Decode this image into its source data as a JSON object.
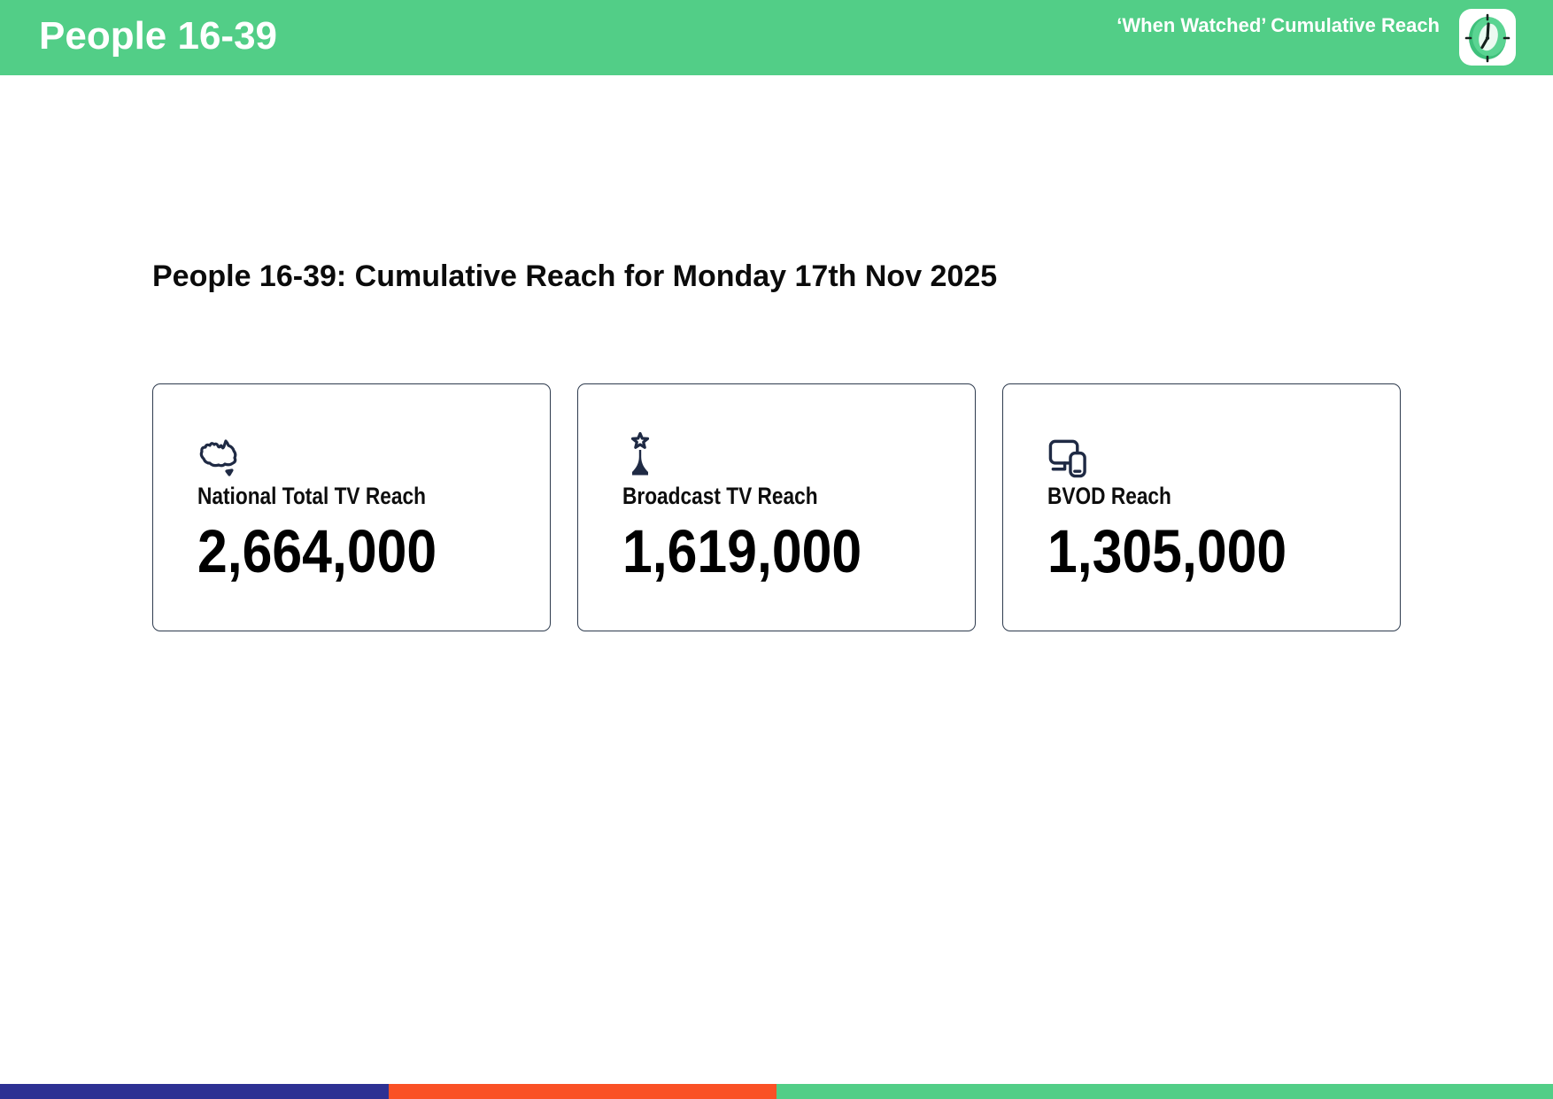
{
  "header": {
    "title": "People 16-39",
    "subtitle": "‘When Watched’ Cumulative Reach",
    "accent_green": "#52ce87",
    "logo_icon": "clock-app-icon"
  },
  "main": {
    "heading": "People 16-39: Cumulative Reach for Monday 17th Nov 2025",
    "icon_color": "#1f2a44",
    "card_border_color": "#2e3b4e",
    "cards": [
      {
        "icon": "australia-map-icon",
        "label": "National Total TV Reach",
        "value": "2,664,000"
      },
      {
        "icon": "broadcast-tower-icon",
        "label": "Broadcast TV Reach",
        "value": "1,619,000"
      },
      {
        "icon": "devices-icon",
        "label": "BVOD Reach",
        "value": "1,305,000"
      }
    ]
  },
  "footer": {
    "segments": [
      {
        "name": "indigo",
        "color": "#2d3193",
        "width_pct": 25
      },
      {
        "name": "orange",
        "color": "#fa5125",
        "width_pct": 25
      },
      {
        "name": "green",
        "color": "#52ce87",
        "width_pct": 50
      }
    ]
  }
}
